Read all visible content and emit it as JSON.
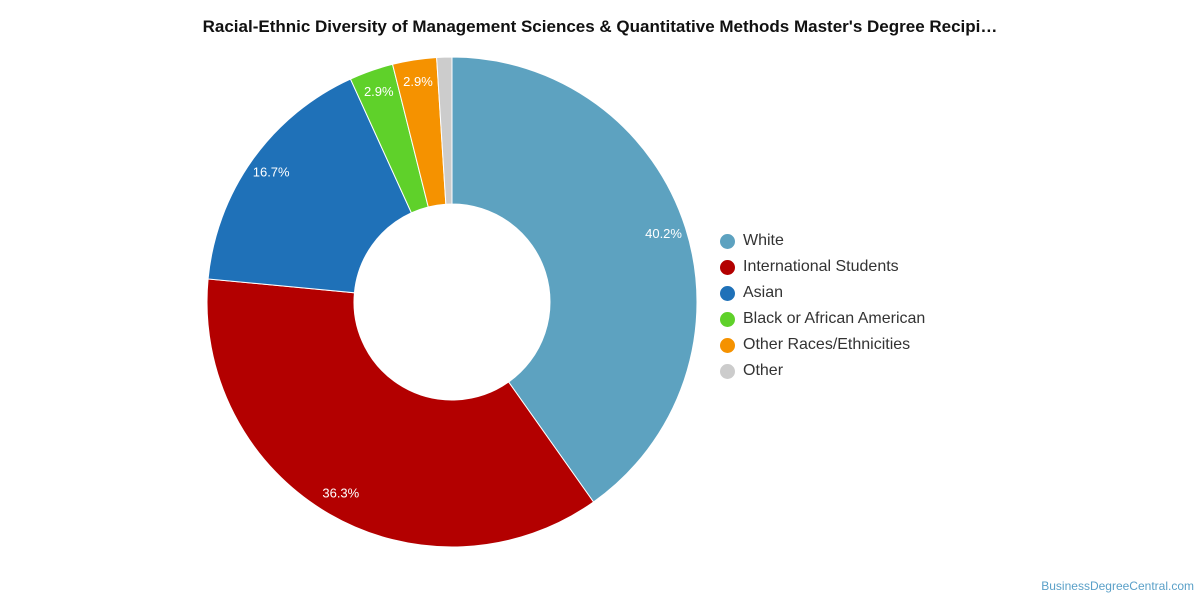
{
  "chart_data": {
    "type": "pie",
    "title": "Racial-Ethnic Diversity of Management Sciences & Quantitative Methods Master's Degree Recipi…",
    "categories": [
      "White",
      "International Students",
      "Asian",
      "Black or African American",
      "Other Races/Ethnicities",
      "Other"
    ],
    "values": [
      40.2,
      36.3,
      16.7,
      2.9,
      2.9,
      1.0
    ],
    "value_labels": [
      "40.2%",
      "36.3%",
      "16.7%",
      "2.9%",
      "2.9%",
      ""
    ],
    "colors": [
      "#5da2c0",
      "#b30000",
      "#1f71b8",
      "#5fd12a",
      "#f59200",
      "#cccccc"
    ],
    "donut": true,
    "legend_position": "right"
  },
  "source": "BusinessDegreeCentral.com"
}
